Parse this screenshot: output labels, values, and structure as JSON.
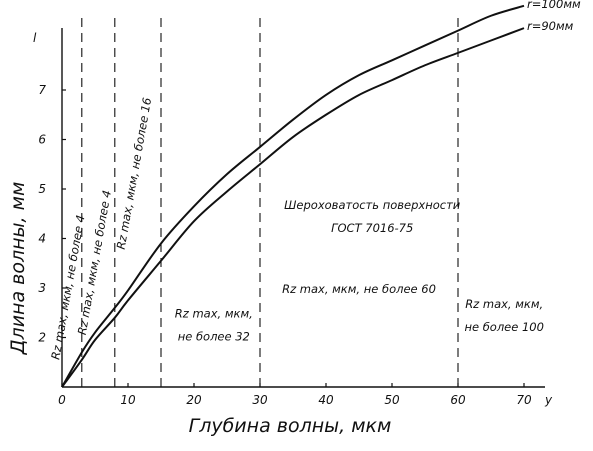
{
  "chart_data": {
    "type": "line",
    "xlabel": "Глубина волны, мкм",
    "ylabel": "Длина волны, мм",
    "x_axis_symbol": "y",
    "y_axis_symbol": "l",
    "xlim": [
      0,
      72
    ],
    "ylim": [
      1,
      8.5
    ],
    "x_ticks": [
      "0",
      "10",
      "20",
      "30",
      "40",
      "50",
      "60",
      "70"
    ],
    "x_tick_values": [
      0,
      10,
      20,
      30,
      40,
      50,
      60,
      70
    ],
    "y_ticks": [
      "2",
      "3",
      "4",
      "5",
      "6",
      "7"
    ],
    "y_tick_values": [
      2,
      3,
      4,
      5,
      6,
      7
    ],
    "series": [
      {
        "name": "r=100мм",
        "x": [
          0,
          3,
          5,
          8,
          10,
          15,
          20,
          25,
          30,
          35,
          40,
          45,
          50,
          55,
          60,
          65,
          70
        ],
        "y": [
          1,
          1.7,
          2.1,
          2.6,
          2.95,
          3.9,
          4.65,
          5.3,
          5.85,
          6.4,
          6.9,
          7.3,
          7.6,
          7.9,
          8.2,
          8.5,
          8.7
        ]
      },
      {
        "name": "r=90мм",
        "x": [
          0,
          3,
          5,
          8,
          10,
          15,
          20,
          25,
          30,
          35,
          40,
          45,
          50,
          55,
          60,
          65,
          70
        ],
        "y": [
          1,
          1.55,
          1.95,
          2.4,
          2.75,
          3.55,
          4.35,
          4.95,
          5.5,
          6.05,
          6.5,
          6.9,
          7.2,
          7.5,
          7.75,
          8.0,
          8.25
        ]
      }
    ],
    "boundaries": [
      3,
      8,
      15,
      30,
      60
    ],
    "regions": [
      {
        "lines": [
          "Rz max, мкм, не более 4"
        ],
        "rotated": true,
        "x": 1.5,
        "y": 3.0
      },
      {
        "lines": [
          "Rz max, мкм, не более 4"
        ],
        "rotated": true,
        "x": 5.5,
        "y": 3.5
      },
      {
        "lines": [
          "Rz max, мкм, не более 16"
        ],
        "rotated": true,
        "x": 11.5,
        "y": 5.3
      },
      {
        "lines": [
          "Rz max, мкм,",
          "не более 32"
        ],
        "rotated": false,
        "x": 23,
        "y": 2.4
      },
      {
        "lines": [
          "Rz max, мкм, не более 60"
        ],
        "rotated": false,
        "x": 45,
        "y": 2.9
      },
      {
        "lines": [
          "Rz max, мкм,",
          "не более 100"
        ],
        "rotated": false,
        "x": 67,
        "y": 2.6
      },
      {
        "lines": [
          "Шероховатость поверхности",
          "ГОСТ 7016-75"
        ],
        "rotated": false,
        "x": 47,
        "y": 4.6
      }
    ]
  }
}
